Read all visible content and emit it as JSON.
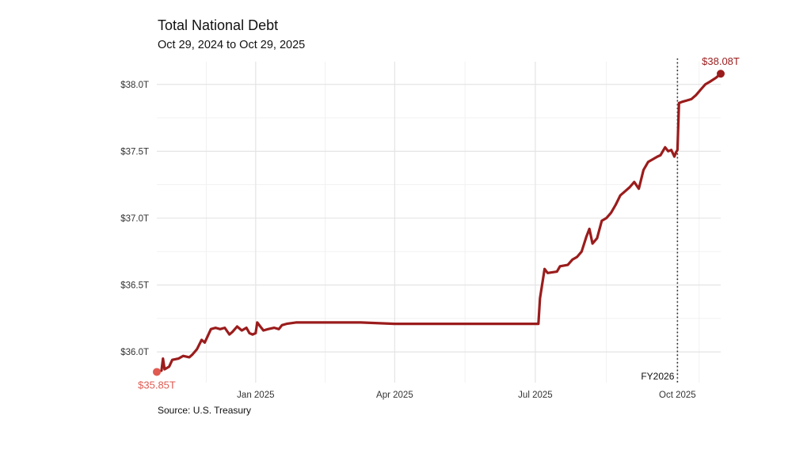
{
  "chart_data": {
    "type": "line",
    "title": "Total National Debt",
    "subtitle": "Oct 29, 2024 to Oct 29, 2025",
    "source": "Source: U.S. Treasury",
    "xlabel": "",
    "ylabel": "",
    "x_range": [
      "2024-10-29",
      "2025-10-29"
    ],
    "ylim": [
      35.77,
      38.17
    ],
    "y_ticks": [
      {
        "value": 36.0,
        "label": "$36.0T"
      },
      {
        "value": 36.5,
        "label": "$36.5T"
      },
      {
        "value": 37.0,
        "label": "$37.0T"
      },
      {
        "value": 37.5,
        "label": "$37.5T"
      },
      {
        "value": 38.0,
        "label": "$38.0T"
      }
    ],
    "x_ticks": [
      {
        "date": "2025-01-01",
        "label": "Jan 2025"
      },
      {
        "date": "2025-04-01",
        "label": "Apr 2025"
      },
      {
        "date": "2025-07-01",
        "label": "Jul 2025"
      },
      {
        "date": "2025-10-01",
        "label": "Oct 2025"
      }
    ],
    "grid": true,
    "series": [
      {
        "color": "#9b1c1c",
        "points": [
          [
            "2024-10-29",
            35.85
          ],
          [
            "2024-11-01",
            35.86
          ],
          [
            "2024-11-02",
            35.95
          ],
          [
            "2024-11-03",
            35.87
          ],
          [
            "2024-11-06",
            35.89
          ],
          [
            "2024-11-08",
            35.94
          ],
          [
            "2024-11-12",
            35.95
          ],
          [
            "2024-11-15",
            35.97
          ],
          [
            "2024-11-19",
            35.96
          ],
          [
            "2024-11-21",
            35.98
          ],
          [
            "2024-11-24",
            36.02
          ],
          [
            "2024-11-27",
            36.09
          ],
          [
            "2024-11-29",
            36.07
          ],
          [
            "2024-12-03",
            36.17
          ],
          [
            "2024-12-06",
            36.18
          ],
          [
            "2024-12-09",
            36.17
          ],
          [
            "2024-12-12",
            36.18
          ],
          [
            "2024-12-15",
            36.13
          ],
          [
            "2024-12-17",
            36.15
          ],
          [
            "2024-12-20",
            36.19
          ],
          [
            "2024-12-23",
            36.16
          ],
          [
            "2024-12-26",
            36.18
          ],
          [
            "2024-12-28",
            36.14
          ],
          [
            "2024-12-30",
            36.13
          ],
          [
            "2025-01-01",
            36.14
          ],
          [
            "2025-01-02",
            36.22
          ],
          [
            "2025-01-04",
            36.19
          ],
          [
            "2025-01-06",
            36.16
          ],
          [
            "2025-01-09",
            36.17
          ],
          [
            "2025-01-13",
            36.18
          ],
          [
            "2025-01-16",
            36.17
          ],
          [
            "2025-01-18",
            36.2
          ],
          [
            "2025-01-21",
            36.21
          ],
          [
            "2025-01-27",
            36.22
          ],
          [
            "2025-02-15",
            36.22
          ],
          [
            "2025-03-10",
            36.22
          ],
          [
            "2025-04-01",
            36.21
          ],
          [
            "2025-05-01",
            36.21
          ],
          [
            "2025-06-01",
            36.21
          ],
          [
            "2025-06-20",
            36.21
          ],
          [
            "2025-07-03",
            36.21
          ],
          [
            "2025-07-04",
            36.4
          ],
          [
            "2025-07-07",
            36.62
          ],
          [
            "2025-07-09",
            36.59
          ],
          [
            "2025-07-15",
            36.6
          ],
          [
            "2025-07-17",
            36.64
          ],
          [
            "2025-07-22",
            36.65
          ],
          [
            "2025-07-25",
            36.69
          ],
          [
            "2025-07-28",
            36.71
          ],
          [
            "2025-07-31",
            36.75
          ],
          [
            "2025-08-03",
            36.86
          ],
          [
            "2025-08-05",
            36.92
          ],
          [
            "2025-08-07",
            36.81
          ],
          [
            "2025-08-10",
            36.85
          ],
          [
            "2025-08-13",
            36.98
          ],
          [
            "2025-08-16",
            37.0
          ],
          [
            "2025-08-19",
            37.04
          ],
          [
            "2025-08-22",
            37.1
          ],
          [
            "2025-08-25",
            37.17
          ],
          [
            "2025-08-28",
            37.2
          ],
          [
            "2025-08-31",
            37.23
          ],
          [
            "2025-09-03",
            37.27
          ],
          [
            "2025-09-06",
            37.22
          ],
          [
            "2025-09-09",
            37.36
          ],
          [
            "2025-09-12",
            37.42
          ],
          [
            "2025-09-15",
            37.44
          ],
          [
            "2025-09-18",
            37.46
          ],
          [
            "2025-09-20",
            37.47
          ],
          [
            "2025-09-23",
            37.53
          ],
          [
            "2025-09-25",
            37.5
          ],
          [
            "2025-09-27",
            37.51
          ],
          [
            "2025-09-29",
            37.46
          ],
          [
            "2025-09-30",
            37.49
          ],
          [
            "2025-10-01",
            37.51
          ],
          [
            "2025-10-02",
            37.86
          ],
          [
            "2025-10-04",
            37.87
          ],
          [
            "2025-10-07",
            37.88
          ],
          [
            "2025-10-10",
            37.89
          ],
          [
            "2025-10-13",
            37.92
          ],
          [
            "2025-10-16",
            37.96
          ],
          [
            "2025-10-19",
            38.0
          ],
          [
            "2025-10-22",
            38.02
          ],
          [
            "2025-10-26",
            38.05
          ],
          [
            "2025-10-29",
            38.08
          ]
        ]
      }
    ],
    "start_point": {
      "date": "2024-10-29",
      "value": 35.85,
      "label": "$35.85T",
      "color": "#e05a52"
    },
    "end_point": {
      "date": "2025-10-29",
      "value": 38.08,
      "label": "$38.08T",
      "color": "#9b1c1c"
    },
    "annotations": [
      {
        "type": "vline",
        "date": "2025-10-01",
        "label": "FY2026",
        "style": "dotted"
      }
    ]
  }
}
